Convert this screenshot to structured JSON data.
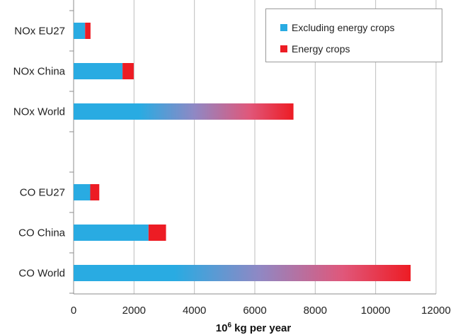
{
  "chart_data": {
    "type": "bar",
    "orientation": "horizontal",
    "stacked": true,
    "categories": [
      "NOx EU27",
      "NOx China",
      "NOx World",
      "",
      "CO EU27",
      "CO China",
      "CO World"
    ],
    "series": [
      {
        "name": "Excluding energy crops",
        "values": [
          380,
          1620,
          6500,
          0,
          550,
          2480,
          9600
        ]
      },
      {
        "name": "Energy crops",
        "values": [
          180,
          370,
          780,
          0,
          300,
          580,
          1560
        ]
      }
    ],
    "colors": {
      "excluding": "#29abe2",
      "energy": "#ed1c24",
      "grid": "#bdbdbd",
      "axis": "#8c8c8c"
    },
    "xlim": [
      0,
      12000
    ],
    "xticks": [
      "0",
      "2000",
      "4000",
      "6000",
      "8000",
      "10000",
      "12000"
    ],
    "xlabel_base": "10",
    "xlabel_exp": "6",
    "xlabel_rest": " kg per year",
    "legend_position": "top-right",
    "grid": "vertical"
  }
}
